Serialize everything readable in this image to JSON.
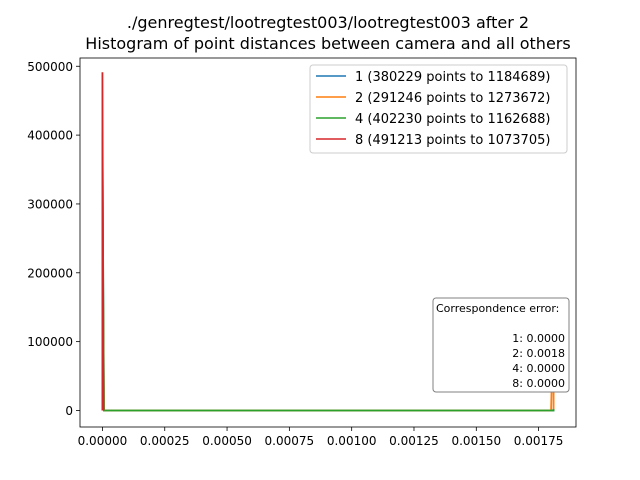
{
  "chart_data": {
    "type": "line",
    "title_lines": [
      "./genregtest/lootregtest003/lootregtest003 after 2",
      "Histogram of point distances between camera and all others"
    ],
    "xlabel": "",
    "ylabel": "",
    "xlim": [
      -9e-05,
      0.0019
    ],
    "ylim": [
      -24000,
      512000
    ],
    "xticks": [
      0.0,
      0.00025,
      0.0005,
      0.00075,
      0.001,
      0.00125,
      0.0015,
      0.00175
    ],
    "xtick_labels": [
      "0.00000",
      "0.00025",
      "0.00050",
      "0.00075",
      "0.00100",
      "0.00125",
      "0.00150",
      "0.00175"
    ],
    "yticks": [
      0,
      100000,
      200000,
      300000,
      400000,
      500000
    ],
    "ytick_labels": [
      "0",
      "100000",
      "200000",
      "300000",
      "400000",
      "500000"
    ],
    "grid": false,
    "legend_position": "top-right",
    "series": [
      {
        "name": "1 (380229 points to 1184689)",
        "color": "#1f77b4",
        "x": [
          0.0,
          0.0,
          6e-06,
          0.00181,
          0.00181,
          0.00181
        ],
        "y": [
          0,
          380229,
          0,
          0,
          3000,
          0
        ]
      },
      {
        "name": "2 (291246 points to 1273672)",
        "color": "#ff7f0e",
        "x": [
          0.0,
          0.0,
          6e-06,
          0.0018,
          0.00181,
          0.00181
        ],
        "y": [
          0,
          291246,
          0,
          0,
          150000,
          0
        ]
      },
      {
        "name": "4 (402230 points to 1162688)",
        "color": "#2ca02c",
        "x": [
          0.0,
          0.0,
          6e-06,
          0.00181,
          0.00181,
          0.00181
        ],
        "y": [
          0,
          402230,
          0,
          0,
          2000,
          0
        ]
      },
      {
        "name": "8 (491213 points to 1073705)",
        "color": "#d62728",
        "x": [
          0.0,
          0.0,
          4e-06
        ],
        "y": [
          0,
          491213,
          0
        ]
      }
    ],
    "annotation": {
      "title": "Correspondence error:",
      "lines": [
        "1: 0.0000",
        "2: 0.0018",
        "4: 0.0000",
        "8: 0.0000"
      ]
    }
  }
}
